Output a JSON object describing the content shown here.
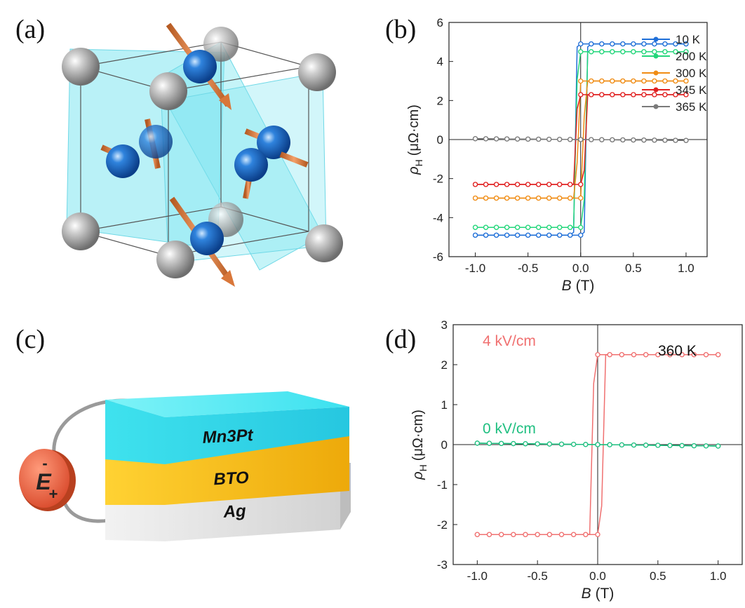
{
  "panels": {
    "a": {
      "label": "(a)"
    },
    "b": {
      "label": "(b)"
    },
    "c": {
      "label": "(c)"
    },
    "d": {
      "label": "(d)"
    }
  },
  "device": {
    "layers": [
      "Mn3Pt",
      "BTO",
      "Ag"
    ],
    "layer_colors": {
      "Mn3Pt": "#33dbe8",
      "BTO": "#f2b40c",
      "Ag": "#dcdcdc"
    },
    "field_symbol": "E",
    "minus_sign": "-",
    "plus_sign": "+"
  },
  "chart_data": [
    {
      "id": "b",
      "type": "line",
      "xlabel_var": "B",
      "xlabel_unit": "(T)",
      "ylabel_var": "ρ",
      "ylabel_sub": "H",
      "ylabel_unit": "(μΩ·cm)",
      "xlim": [
        -1.25,
        1.2
      ],
      "ylim": [
        -6,
        6
      ],
      "xticks": [
        -1.0,
        -0.5,
        0.0,
        0.5,
        1.0
      ],
      "yticks": [
        -6,
        -4,
        -2,
        0,
        2,
        4,
        6
      ],
      "legend_position": "top-right",
      "series": [
        {
          "name": "10 K",
          "color": "#1f6fd8",
          "hc": 0.05,
          "sat": 4.9
        },
        {
          "name": "200 K",
          "color": "#22d67a",
          "hc": 0.04,
          "sat": 4.5
        },
        {
          "name": "300 K",
          "color": "#f08c14",
          "hc": 0.03,
          "sat": 3.0
        },
        {
          "name": "345 K",
          "color": "#e02020",
          "hc": 0.04,
          "sat": 2.3
        },
        {
          "name": "365 K",
          "color": "#7a7a7a",
          "hc": 0.0,
          "sat": 0.05
        }
      ]
    },
    {
      "id": "d",
      "type": "line",
      "xlabel_var": "B",
      "xlabel_unit": "(T)",
      "ylabel_var": "ρ",
      "ylabel_sub": "H",
      "ylabel_unit": "(μΩ·cm)",
      "xlim": [
        -1.2,
        1.2
      ],
      "ylim": [
        -3,
        3
      ],
      "xticks": [
        -1.0,
        -0.5,
        0.0,
        0.5,
        1.0
      ],
      "yticks": [
        -3,
        -2,
        -1,
        0,
        1,
        2,
        3
      ],
      "annotation": "360 K",
      "series": [
        {
          "name": "4 kV/cm",
          "color": "#f07070",
          "hc": 0.04,
          "sat": 2.25
        },
        {
          "name": "0 kV/cm",
          "color": "#1fbf80",
          "hc": 0.0,
          "sat": 0.04
        }
      ]
    }
  ]
}
